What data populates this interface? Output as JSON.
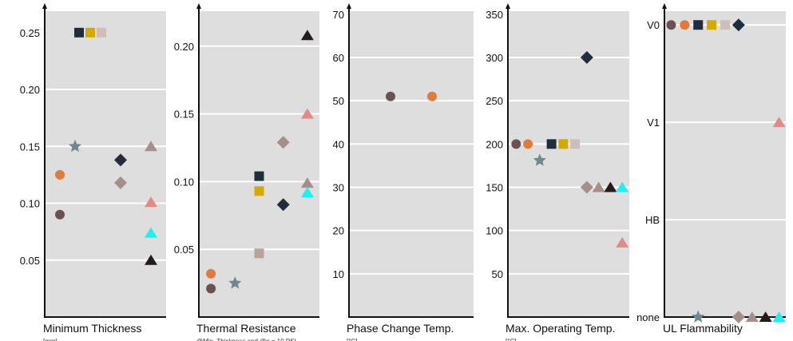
{
  "chart_data": [
    {
      "type": "scatter",
      "xlabel": "Minimum Thickness",
      "unit": "[mm]",
      "yticks": [
        "0.05",
        "0.10",
        "0.15",
        "0.20",
        "0.25"
      ],
      "ylim": [
        0.0,
        0.25
      ],
      "points": [
        {
          "x": 1,
          "y": 0.09,
          "shape": "circle",
          "color": "#6b5252"
        },
        {
          "x": 1,
          "y": 0.125,
          "shape": "circle",
          "color": "#e07a3d"
        },
        {
          "x": 2,
          "y": 0.25,
          "shape": "square",
          "color": "#1f2d3d"
        },
        {
          "x": 2,
          "y": 0.25,
          "shape": "square",
          "color": "#d4a900"
        },
        {
          "x": 2,
          "y": 0.25,
          "shape": "square",
          "color": "#cdbfb8"
        },
        {
          "x": 1.5,
          "y": 0.15,
          "shape": "star",
          "color": "#6f8890"
        },
        {
          "x": 3,
          "y": 0.138,
          "shape": "diamond",
          "color": "#1f2d3d"
        },
        {
          "x": 3,
          "y": 0.118,
          "shape": "diamond",
          "color": "#a58f8c"
        },
        {
          "x": 4,
          "y": 0.15,
          "shape": "triangle",
          "color": "#a58f8c"
        },
        {
          "x": 4,
          "y": 0.101,
          "shape": "triangle",
          "color": "#e28a86"
        },
        {
          "x": 4,
          "y": 0.074,
          "shape": "triangle",
          "color": "#1ef0f0"
        },
        {
          "x": 4,
          "y": 0.05,
          "shape": "triangle",
          "color": "#241c1c"
        }
      ]
    },
    {
      "type": "scatter",
      "xlabel": "Thermal Resistance",
      "unit": "@Min. Thickness and @p = 10 PSI",
      "yticks": [
        "0.05",
        "0.10",
        "0.15",
        "0.20"
      ],
      "ylim": [
        0.0,
        0.21
      ],
      "points": [
        {
          "x": 1,
          "y": 0.021,
          "shape": "circle",
          "color": "#6b5252"
        },
        {
          "x": 1,
          "y": 0.032,
          "shape": "circle",
          "color": "#e07a3d"
        },
        {
          "x": 2,
          "y": 0.025,
          "shape": "star",
          "color": "#6f8890"
        },
        {
          "x": 3,
          "y": 0.104,
          "shape": "square",
          "color": "#1f2d3d"
        },
        {
          "x": 3,
          "y": 0.093,
          "shape": "square",
          "color": "#d4a900"
        },
        {
          "x": 3,
          "y": 0.047,
          "shape": "square",
          "color": "#b7a49a"
        },
        {
          "x": 4,
          "y": 0.083,
          "shape": "diamond",
          "color": "#1f2d3d"
        },
        {
          "x": 4,
          "y": 0.129,
          "shape": "diamond",
          "color": "#a58f8c"
        },
        {
          "x": 5,
          "y": 0.208,
          "shape": "triangle",
          "color": "#241c1c"
        },
        {
          "x": 5,
          "y": 0.15,
          "shape": "triangle",
          "color": "#e28a86"
        },
        {
          "x": 5,
          "y": 0.099,
          "shape": "triangle",
          "color": "#a58f8c"
        },
        {
          "x": 5,
          "y": 0.092,
          "shape": "triangle",
          "color": "#1ef0f0"
        }
      ]
    },
    {
      "type": "scatter",
      "xlabel": "Phase Change Temp.",
      "unit": "[°C]",
      "yticks": [
        "10",
        "20",
        "30",
        "40",
        "50",
        "60",
        "70"
      ],
      "ylim": [
        0,
        70
      ],
      "points": [
        {
          "x": 1,
          "y": 51,
          "shape": "circle",
          "color": "#6b5252"
        },
        {
          "x": 2,
          "y": 51,
          "shape": "circle",
          "color": "#e07a3d"
        }
      ]
    },
    {
      "type": "scatter",
      "xlabel": "Max. Operating Temp.",
      "unit": "[°C]",
      "yticks": [
        "50",
        "100",
        "150",
        "200",
        "250",
        "300",
        "350"
      ],
      "ylim": [
        0,
        350
      ],
      "points": [
        {
          "x": 1,
          "y": 200,
          "shape": "circle",
          "color": "#6b5252"
        },
        {
          "x": 2,
          "y": 200,
          "shape": "circle",
          "color": "#e07a3d"
        },
        {
          "x": 3,
          "y": 181,
          "shape": "star",
          "color": "#6f8890"
        },
        {
          "x": 4,
          "y": 200,
          "shape": "square",
          "color": "#1f2d3d"
        },
        {
          "x": 5,
          "y": 200,
          "shape": "square",
          "color": "#d4a900"
        },
        {
          "x": 6,
          "y": 200,
          "shape": "square",
          "color": "#cdbfb8"
        },
        {
          "x": 7,
          "y": 300,
          "shape": "diamond",
          "color": "#1f2d3d"
        },
        {
          "x": 7,
          "y": 150,
          "shape": "diamond",
          "color": "#a58f8c"
        },
        {
          "x": 8,
          "y": 150,
          "shape": "triangle",
          "color": "#a58f8c"
        },
        {
          "x": 9,
          "y": 150,
          "shape": "triangle",
          "color": "#241c1c"
        },
        {
          "x": 10,
          "y": 150,
          "shape": "triangle",
          "color": "#1ef0f0"
        },
        {
          "x": 10,
          "y": 86,
          "shape": "triangle",
          "color": "#e28a86"
        }
      ]
    },
    {
      "type": "scatter",
      "xlabel": "UL Flammability",
      "unit": "",
      "yticks": [
        "none",
        "HB",
        "V1",
        "V0"
      ],
      "ylim": [
        0,
        3
      ],
      "points": [
        {
          "x": 1,
          "y": 3,
          "shape": "circle",
          "color": "#6b5252"
        },
        {
          "x": 2,
          "y": 3,
          "shape": "circle",
          "color": "#e07a3d"
        },
        {
          "x": 3,
          "y": 3,
          "shape": "square",
          "color": "#1f2d3d"
        },
        {
          "x": 4,
          "y": 3,
          "shape": "square",
          "color": "#d4a900"
        },
        {
          "x": 5,
          "y": 3,
          "shape": "square",
          "color": "#cdbfb8"
        },
        {
          "x": 6,
          "y": 3,
          "shape": "diamond",
          "color": "#1f2d3d"
        },
        {
          "x": 3,
          "y": 0,
          "shape": "star",
          "color": "#6f8890"
        },
        {
          "x": 6,
          "y": 0,
          "shape": "diamond",
          "color": "#a58f8c"
        },
        {
          "x": 7,
          "y": 0,
          "shape": "triangle",
          "color": "#a58f8c"
        },
        {
          "x": 8,
          "y": 0,
          "shape": "triangle",
          "color": "#241c1c"
        },
        {
          "x": 9,
          "y": 0,
          "shape": "triangle",
          "color": "#1ef0f0"
        },
        {
          "x": 9,
          "y": 2,
          "shape": "triangle",
          "color": "#e28a86"
        }
      ]
    }
  ],
  "colors": {
    "plot_background": "#dedede",
    "grid": "#ffffff",
    "axis": "#111111"
  }
}
